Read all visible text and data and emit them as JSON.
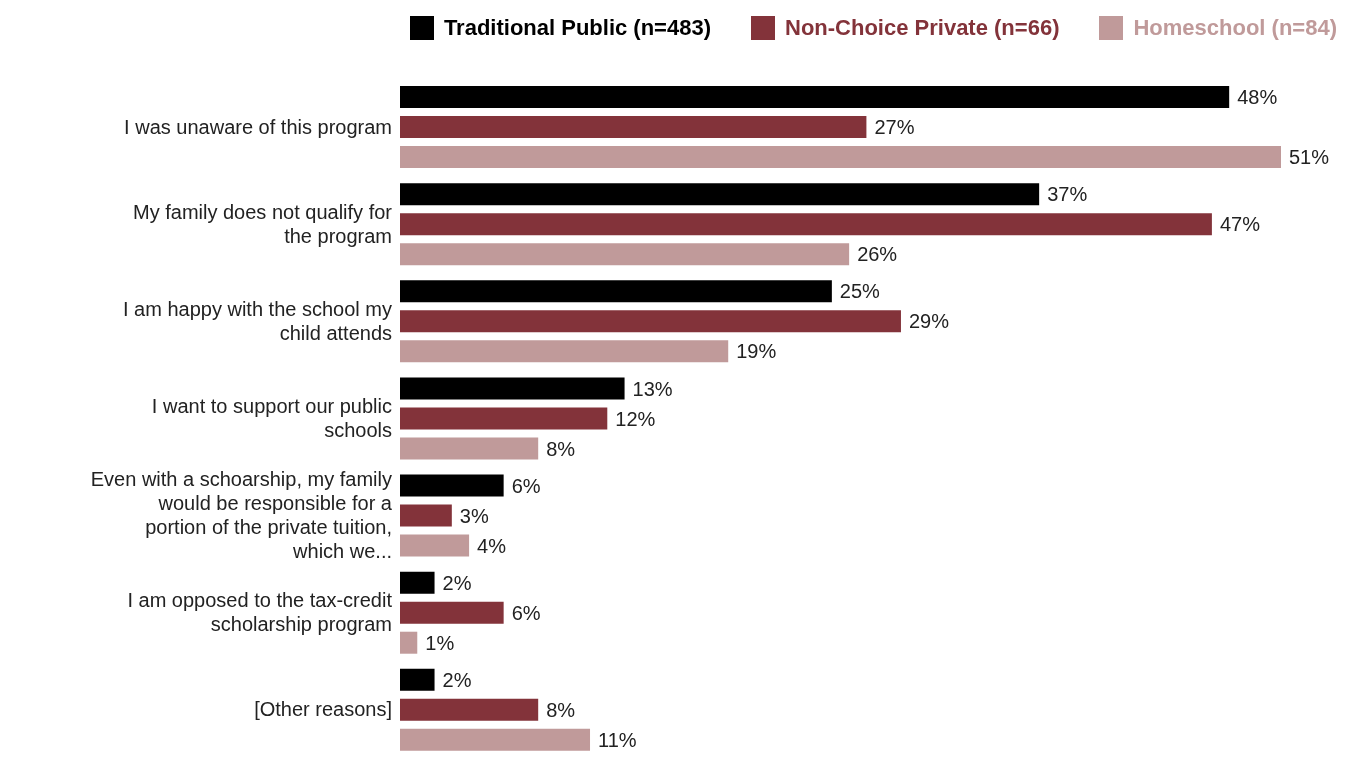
{
  "chart_data": {
    "type": "bar",
    "orientation": "horizontal",
    "legend": "top",
    "grid": false,
    "categories": [
      "I was unaware of this program",
      "My family does not qualify for the program",
      "I am happy with the school my child attends",
      "I want to support our public schools",
      "Even with a schoarship, my family would be responsible for a portion of the private tuition, which we...",
      "I am opposed to the tax-credit scholarship program",
      "[Other reasons]"
    ],
    "series": [
      {
        "name": "Traditional Public (n=483)",
        "color": "#000000",
        "values": [
          48,
          37,
          25,
          13,
          6,
          2,
          2
        ],
        "value_labels": [
          "48%",
          "37%",
          "25%",
          "13%",
          "6%",
          "2%",
          "2%"
        ]
      },
      {
        "name": "Non-Choice Private (n=66)",
        "color": "#83333a",
        "values": [
          27,
          47,
          29,
          12,
          3,
          6,
          8
        ],
        "value_labels": [
          "27%",
          "47%",
          "29%",
          "12%",
          "3%",
          "6%",
          "8%"
        ]
      },
      {
        "name": "Homeschool (n=84)",
        "color": "#c09a9a",
        "values": [
          51,
          26,
          19,
          8,
          4,
          1,
          11
        ],
        "value_labels": [
          "51%",
          "26%",
          "19%",
          "8%",
          "4%",
          "1%",
          "11%"
        ]
      }
    ]
  }
}
